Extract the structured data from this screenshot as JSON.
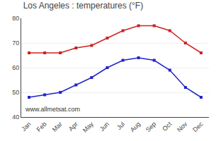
{
  "chart_data": {
    "type": "line",
    "title": "Los Angeles : temperatures (°F)",
    "categories": [
      "Jan",
      "Feb",
      "Mar",
      "Apr",
      "May",
      "Jun",
      "Jul",
      "Aug",
      "Sep",
      "Oct",
      "Nov",
      "Dec"
    ],
    "series": [
      {
        "color": "#cc2222",
        "values": [
          66,
          66,
          66,
          68,
          69,
          72,
          75,
          77,
          77,
          75,
          70,
          66
        ]
      },
      {
        "color": "#2222cc",
        "values": [
          48,
          49,
          50,
          53,
          56,
          60,
          63,
          64,
          63,
          59,
          52,
          48
        ]
      }
    ],
    "ylim": [
      40,
      80
    ],
    "yticks": [
      40,
      50,
      60,
      70,
      80
    ],
    "grid": true,
    "marker": "square",
    "annotations": [
      "www.allmetsat.com"
    ]
  }
}
